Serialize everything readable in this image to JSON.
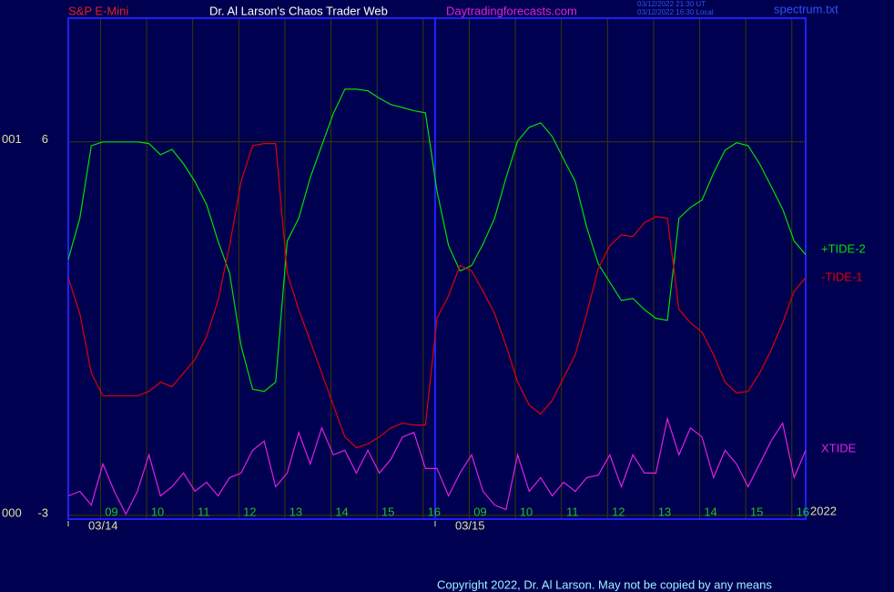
{
  "chart_data": {
    "type": "line",
    "header": {
      "instrument": "S&P E-Mini",
      "site_title": "Dr. Al Larson's Chaos Trader Web",
      "url": "Daytradingforecasts.com",
      "timestamps": [
        "03/12/2022 21:30 UT",
        "03/12/2022 16:30 Local"
      ],
      "file": "spectrum.txt"
    },
    "footer": "Copyright 2022, Dr. Al Larson. May not be copied by any means",
    "year_label": "2022",
    "y_tick_prefixes": [
      "001",
      "000"
    ],
    "x": [
      -0.7,
      -0.45,
      -0.2,
      0.05,
      0.3,
      0.55,
      0.8,
      1.05,
      1.3,
      1.55,
      1.8,
      2.05,
      2.3,
      2.55,
      2.8,
      3.05,
      3.3,
      3.55,
      3.8,
      4.05,
      4.3,
      4.55,
      4.8,
      5.05,
      5.3,
      5.55,
      5.8,
      6.05,
      6.3,
      6.55,
      6.8,
      7.05,
      7.3,
      7.55,
      7.8,
      8.05,
      8.3,
      8.55,
      8.8,
      9.05,
      9.3,
      9.55,
      9.8,
      10.05,
      10.3,
      10.55,
      10.8,
      11.05,
      11.3,
      11.55,
      11.8,
      12.05,
      12.3,
      12.55,
      12.8,
      13.05,
      13.3,
      13.55,
      13.8,
      14.05,
      14.3,
      14.55,
      14.8,
      15.05,
      15.3
    ],
    "series": [
      {
        "name": "+TIDE-2",
        "color": "#00e000",
        "values": [
          3.17,
          4.16,
          5.91,
          6,
          6,
          6,
          6,
          5.96,
          5.69,
          5.82,
          5.47,
          5.04,
          4.49,
          3.61,
          2.84,
          1.09,
          0.04,
          -0.01,
          0.21,
          3.61,
          4.16,
          5.14,
          5.91,
          6.68,
          7.27,
          7.27,
          7.23,
          7.05,
          6.9,
          6.83,
          6.75,
          6.7,
          4.82,
          3.5,
          2.89,
          3.02,
          3.54,
          4.16,
          5.14,
          6.02,
          6.35,
          6.46,
          6.13,
          5.58,
          5.04,
          3.94,
          3.06,
          2.62,
          2.18,
          2.23,
          1.96,
          1.75,
          1.7,
          4.16,
          4.42,
          4.6,
          5.25,
          5.8,
          5.98,
          5.91,
          5.47,
          4.93,
          4.38,
          3.61,
          3.28
        ]
      },
      {
        "name": "-TIDE-1",
        "color": "#e00000",
        "values": [
          2.73,
          1.86,
          0.43,
          -0.12,
          -0.12,
          -0.12,
          -0.12,
          -0.01,
          0.21,
          0.1,
          0.43,
          0.76,
          1.31,
          2.18,
          3.5,
          5.04,
          5.91,
          5.96,
          5.96,
          2.84,
          1.96,
          1.2,
          0.43,
          -0.34,
          -1.11,
          -1.37,
          -1.28,
          -1.11,
          -0.89,
          -0.78,
          -0.82,
          -0.82,
          1.75,
          2.29,
          3.02,
          2.89,
          2.4,
          1.86,
          1.09,
          0.21,
          -0.34,
          -0.56,
          -0.23,
          0.32,
          0.87,
          1.86,
          2.95,
          3.5,
          3.76,
          3.72,
          4.05,
          4.2,
          4.16,
          1.96,
          1.64,
          1.42,
          0.87,
          0.21,
          -0.05,
          -0.01,
          0.43,
          0.98,
          1.64,
          2.4,
          2.73
        ]
      },
      {
        "name": "XTIDE",
        "color": "#e020e0",
        "values": [
          -2.53,
          -2.42,
          -2.75,
          -1.76,
          -2.42,
          -2.97,
          -2.42,
          -1.54,
          -2.53,
          -2.31,
          -1.98,
          -2.42,
          -2.2,
          -2.53,
          -2.09,
          -1.98,
          -1.43,
          -1.21,
          -2.31,
          -1.98,
          -1,
          -1.76,
          -0.89,
          -1.54,
          -1.43,
          -1.98,
          -1.43,
          -1.98,
          -1.65,
          -1.11,
          -1,
          -1.87,
          -1.87,
          -2.53,
          -1.98,
          -1.54,
          -2.42,
          -2.75,
          -2.86,
          -1.54,
          -2.42,
          -2.09,
          -2.53,
          -2.2,
          -2.42,
          -2.09,
          -2.03,
          -1.54,
          -2.31,
          -1.54,
          -1.98,
          -1.98,
          -0.67,
          -1.54,
          -0.89,
          -1.11,
          -2.09,
          -1.43,
          -1.76,
          -2.31,
          -1.76,
          -1.21,
          -0.78,
          -2.09,
          -1.43
        ]
      }
    ],
    "xlim": [
      -0.7,
      15.3
    ],
    "xticks": [
      {
        "value": 0,
        "label": "09"
      },
      {
        "value": 1,
        "label": "10"
      },
      {
        "value": 2,
        "label": "11"
      },
      {
        "value": 3,
        "label": "12"
      },
      {
        "value": 4,
        "label": "13"
      },
      {
        "value": 5,
        "label": "14"
      },
      {
        "value": 6,
        "label": "15"
      },
      {
        "value": 7,
        "label": "16"
      },
      {
        "value": 8,
        "label": "09"
      },
      {
        "value": 9,
        "label": "10"
      },
      {
        "value": 10,
        "label": "11"
      },
      {
        "value": 11,
        "label": "12"
      },
      {
        "value": 12,
        "label": "13"
      },
      {
        "value": 13,
        "label": "14"
      },
      {
        "value": 14,
        "label": "15"
      },
      {
        "value": 15,
        "label": "16"
      }
    ],
    "date_ticks": [
      {
        "value": -0.7,
        "label": "03/14"
      },
      {
        "value": 7.26,
        "label": "03/15"
      }
    ],
    "ylim": [
      -3.09,
      8.98
    ],
    "yticks": [
      6,
      -3
    ],
    "grid": true
  }
}
